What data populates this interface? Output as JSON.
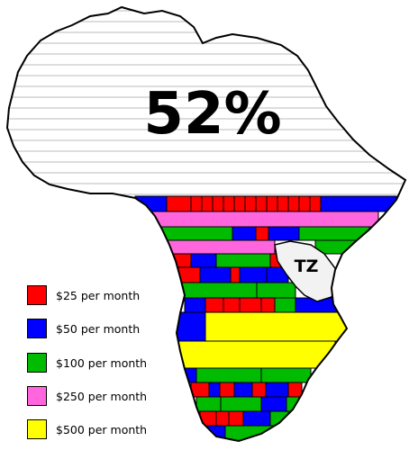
{
  "map": {
    "percent_label": "52%",
    "region_label": "TZ",
    "colors": {
      "red": "#ff0000",
      "blue": "#0000ff",
      "green": "#00bb00",
      "pink": "#ff66dd",
      "yellow": "#ffff00",
      "north_fill": "#ffffff",
      "north_stripes": "#bbbbbb",
      "tz_fill": "#f2f2f2",
      "outline": "#000000"
    }
  },
  "legend": {
    "items": [
      {
        "label": "$25 per month",
        "color": "#ff0000"
      },
      {
        "label": "$50 per month",
        "color": "#0000ff"
      },
      {
        "label": "$100 per month",
        "color": "#00bb00"
      },
      {
        "label": "$250 per month",
        "color": "#ff66dd"
      },
      {
        "label": "$500 per month",
        "color": "#ffff00"
      }
    ]
  }
}
